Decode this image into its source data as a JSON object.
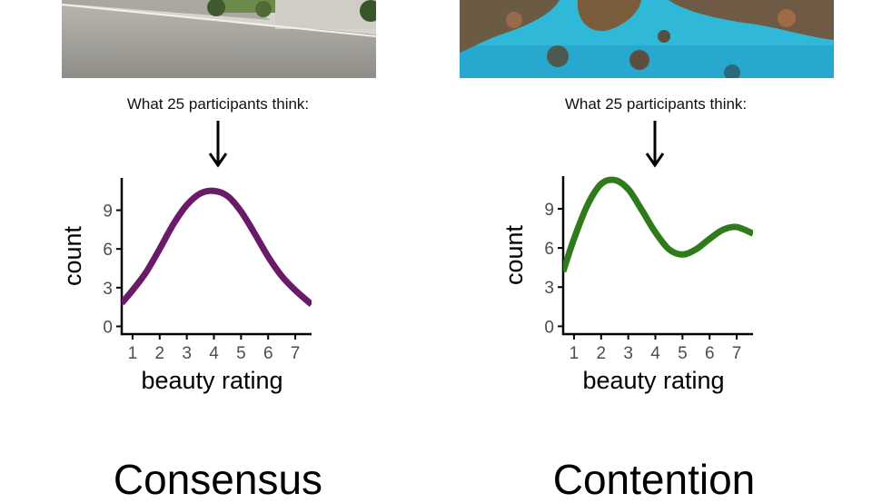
{
  "panels": [
    {
      "id": "consensus",
      "photo": "street-photo",
      "caption": "What 25 participants think:",
      "outcome": "Consensus",
      "line_color": "#6a1a68"
    },
    {
      "id": "contention",
      "photo": "coral-reef-photo",
      "caption": "What 25 participants think:",
      "outcome": "Contention",
      "line_color": "#2f7a1a"
    }
  ],
  "chart_data": [
    {
      "type": "line",
      "xlabel": "beauty rating",
      "ylabel": "count",
      "x_ticks": [
        1,
        2,
        3,
        4,
        5,
        6,
        7
      ],
      "y_ticks": [
        0,
        3,
        6,
        9
      ],
      "xlim": [
        0.6,
        7.6
      ],
      "ylim": [
        -0.6,
        11.5
      ],
      "series": [
        {
          "x": [
            0.6,
            1,
            1.5,
            2,
            2.5,
            3,
            3.5,
            4,
            4.5,
            5,
            5.5,
            6,
            6.5,
            7,
            7.6
          ],
          "values": [
            1.8,
            2.8,
            4.2,
            6.0,
            7.9,
            9.4,
            10.3,
            10.5,
            10.1,
            8.9,
            7.2,
            5.4,
            3.9,
            2.8,
            1.7
          ]
        }
      ]
    },
    {
      "type": "line",
      "xlabel": "beauty rating",
      "ylabel": "count",
      "x_ticks": [
        1,
        2,
        3,
        4,
        5,
        6,
        7
      ],
      "y_ticks": [
        0,
        3,
        6,
        9
      ],
      "xlim": [
        0.6,
        7.6
      ],
      "ylim": [
        -0.6,
        11.5
      ],
      "series": [
        {
          "x": [
            0.6,
            1,
            1.5,
            2,
            2.5,
            3,
            3.5,
            4,
            4.5,
            5,
            5.5,
            6,
            6.5,
            7,
            7.6
          ],
          "values": [
            4.2,
            6.7,
            9.3,
            10.9,
            11.2,
            10.5,
            8.9,
            7.2,
            5.9,
            5.5,
            5.9,
            6.7,
            7.4,
            7.6,
            7.1
          ]
        }
      ]
    }
  ]
}
